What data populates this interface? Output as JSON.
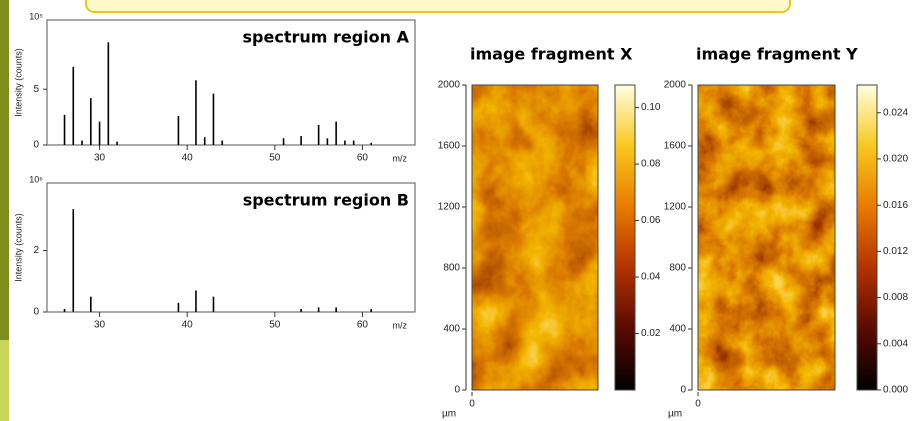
{
  "chart_data": [
    {
      "type": "bar",
      "title": "spectrum region A",
      "y_label": "Intensity (counts)",
      "y_scale_label": "10⁵",
      "x_label": "m/z",
      "x": [
        26,
        27,
        28,
        29,
        30,
        31,
        32,
        39,
        41,
        42,
        43,
        44,
        51,
        53,
        55,
        56,
        57,
        58,
        59,
        61
      ],
      "values": [
        2.7,
        7.0,
        0.4,
        4.2,
        2.1,
        9.2,
        0.3,
        2.6,
        5.8,
        0.7,
        4.6,
        0.4,
        0.6,
        0.8,
        1.8,
        0.6,
        2.1,
        0.4,
        0.4,
        0.2
      ],
      "color": "#000000",
      "xlim": [
        24,
        66
      ],
      "ylim": [
        0,
        11.2
      ],
      "xticks": [
        30,
        40,
        50,
        60
      ],
      "yticks": [
        0,
        5
      ]
    },
    {
      "type": "bar",
      "title": "spectrum region B",
      "y_label": "Intensity (counts)",
      "y_scale_label": "10⁶",
      "x_label": "m/z",
      "x": [
        26,
        27,
        29,
        39,
        41,
        43,
        53,
        55,
        57,
        61
      ],
      "values": [
        0.1,
        3.35,
        0.5,
        0.3,
        0.7,
        0.5,
        0.1,
        0.15,
        0.15,
        0.1
      ],
      "color": "#000000",
      "xlim": [
        24,
        66
      ],
      "ylim": [
        0,
        4.2
      ],
      "xticks": [
        30,
        40,
        50,
        60
      ],
      "yticks": [
        0,
        2
      ]
    },
    {
      "type": "heatmap",
      "title": "image fragment X",
      "x_unit_label": "µm",
      "xticks": [
        0
      ],
      "ylim": [
        0,
        2000
      ],
      "yticks": [
        0,
        400,
        800,
        1200,
        1600,
        2000
      ],
      "colormap": [
        "#000000",
        "#5a0a00",
        "#b43200",
        "#e87a00",
        "#f8c820",
        "#ffffe0"
      ],
      "colorbar_lim": [
        0,
        0.108
      ],
      "colorbar_ticks": [
        0.02,
        0.04,
        0.06,
        0.08,
        {
          "value": 0.1,
          "label": "0.10"
        }
      ]
    },
    {
      "type": "heatmap",
      "title": "image fragment Y",
      "x_unit_label": "µm",
      "xticks": [
        0
      ],
      "ylim": [
        0,
        2000
      ],
      "yticks": [
        0,
        400,
        800,
        1200,
        1600,
        2000
      ],
      "colormap": [
        "#000000",
        "#5a0a00",
        "#b43200",
        "#e87a00",
        "#f8c820",
        "#ffffe0"
      ],
      "colorbar_lim": [
        0,
        0.0264
      ],
      "colorbar_ticks": [
        {
          "value": 0,
          "label": "0.000"
        },
        0.004,
        0.008,
        0.012,
        0.016,
        {
          "value": 0.02,
          "label": "0.020"
        },
        0.024
      ]
    }
  ]
}
